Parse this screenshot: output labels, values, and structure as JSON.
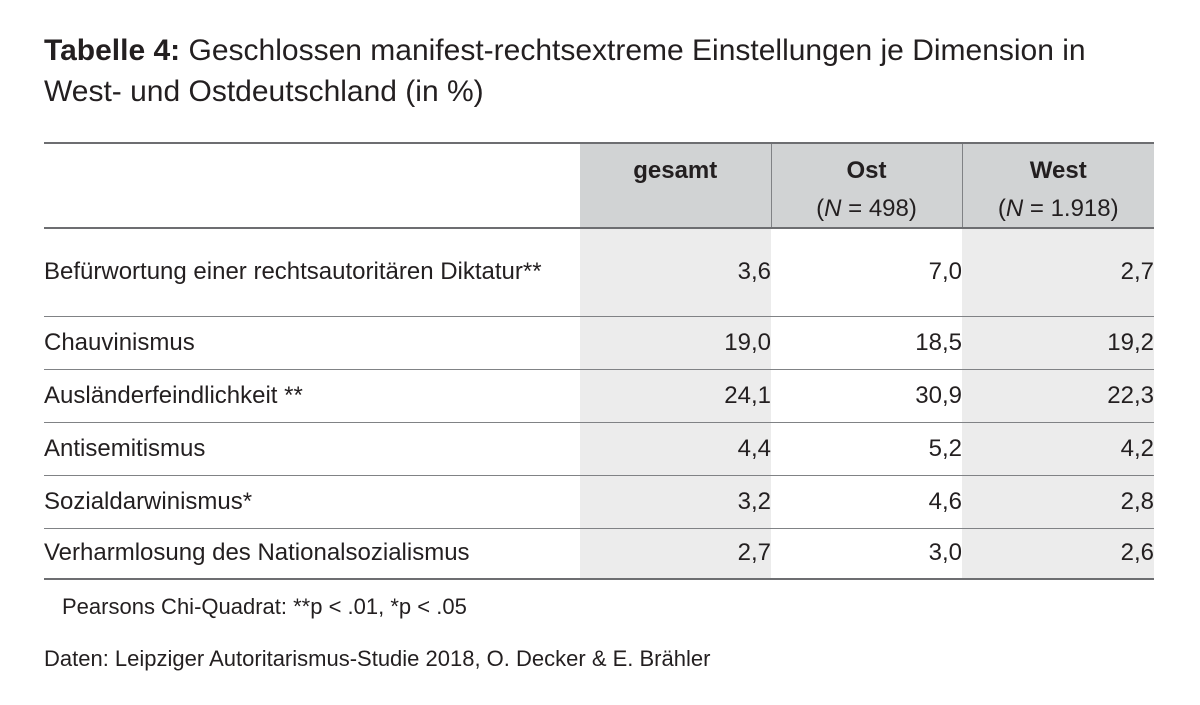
{
  "title": {
    "label": "Tabelle 4:",
    "text": "Geschlossen manifest-rechtsextreme Einstellungen je Dimension in West- und Ostdeutschland (in %)"
  },
  "table": {
    "columns": [
      {
        "label": "gesamt",
        "n_prefix": "",
        "n_var": "",
        "n_rest": ""
      },
      {
        "label": "Ost",
        "n_prefix": "(",
        "n_var": "N",
        "n_rest": " = 498)"
      },
      {
        "label": "West",
        "n_prefix": "(",
        "n_var": "N",
        "n_rest": " = 1.918)"
      }
    ],
    "rows": [
      {
        "label": "Befürwortung einer rechtsautoritären Diktatur**",
        "values": [
          "3,6",
          "7,0",
          "2,7"
        ]
      },
      {
        "label": "Chauvinismus",
        "values": [
          "19,0",
          "18,5",
          "19,2"
        ]
      },
      {
        "label": "Ausländerfeindlichkeit **",
        "values": [
          "24,1",
          "30,9",
          "22,3"
        ]
      },
      {
        "label": "Antisemitismus",
        "values": [
          "4,4",
          "5,2",
          "4,2"
        ]
      },
      {
        "label": "Sozialdarwinismus*",
        "values": [
          "3,2",
          "4,6",
          "2,8"
        ]
      },
      {
        "label": "Verharmlosung des Nationalsozialismus",
        "values": [
          "2,7",
          "3,0",
          "2,6"
        ]
      }
    ]
  },
  "note": "Pearsons Chi-Quadrat: **p < .01, *p < .05",
  "source": "Daten: Leipziger Autoritarismus-Studie 2018, O. Decker & E. Brähler",
  "colors": {
    "header_fill": "#d1d3d4",
    "shaded_column_fill": "#ececec",
    "rule": "#6d6e71",
    "text": "#231f20"
  }
}
